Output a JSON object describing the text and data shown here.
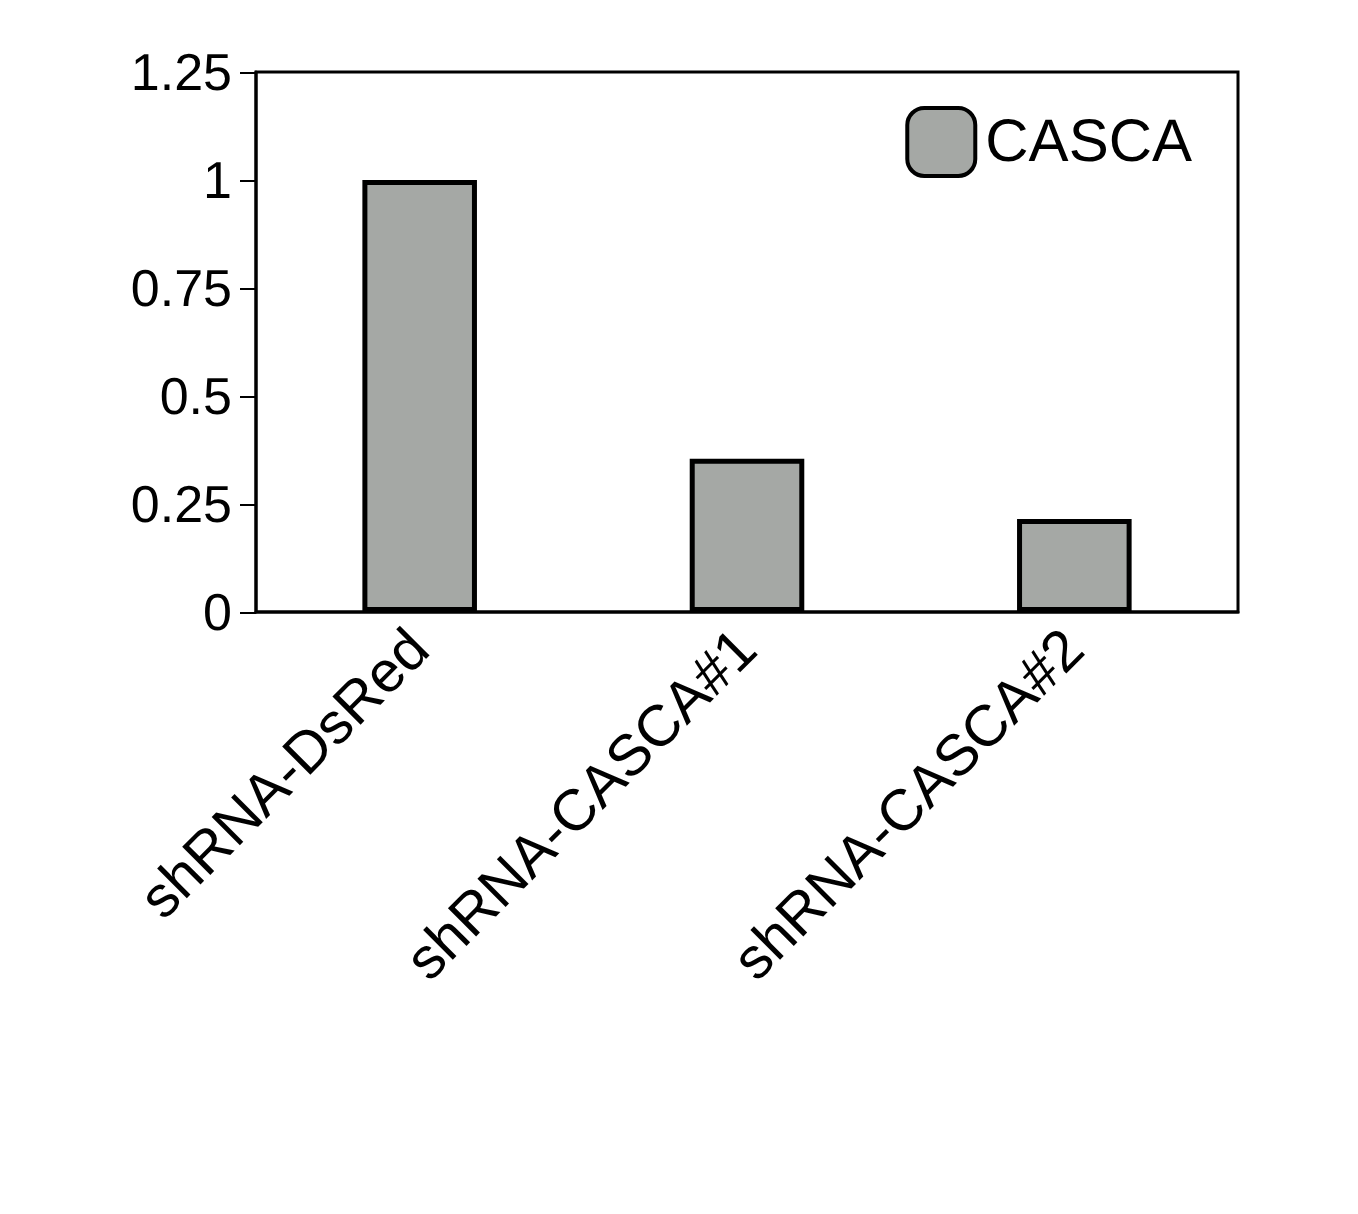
{
  "chart_data": {
    "type": "bar",
    "categories": [
      "shRNA-DsRed",
      "shRNA-CASCA#1",
      "shRNA-CASCA#2"
    ],
    "series": [
      {
        "name": "CASCA",
        "color": "#a5a8a5",
        "values": [
          1,
          0.355,
          0.215
        ]
      }
    ],
    "ylim": [
      0,
      1.25
    ],
    "yticks": [
      0,
      0.25,
      0.5,
      0.75,
      1,
      1.25
    ],
    "grid": false,
    "legend": "top right"
  }
}
